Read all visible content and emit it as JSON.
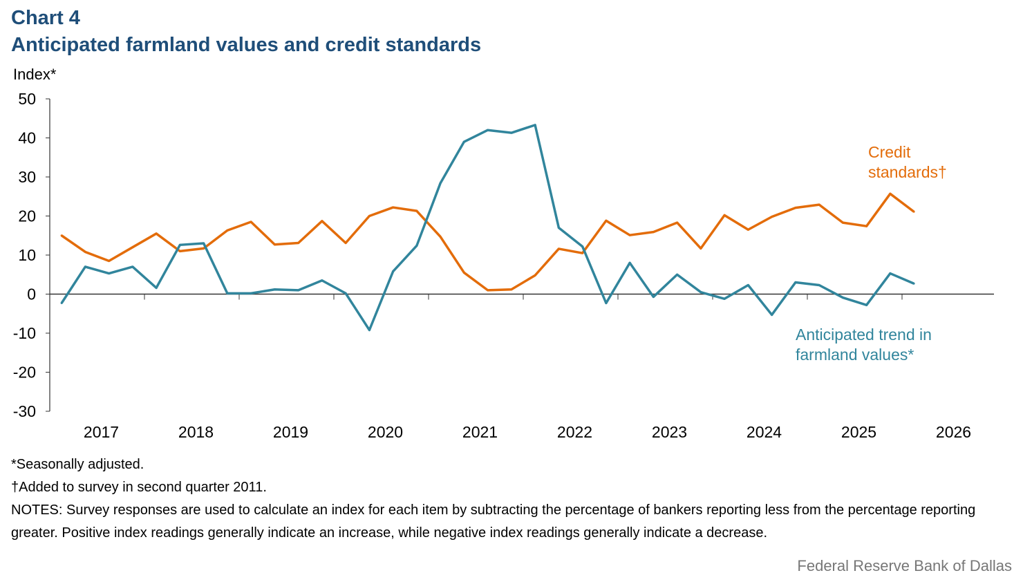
{
  "header": {
    "title": "Chart 4",
    "subtitle": "Anticipated  farmland  values  and  credit  standards"
  },
  "notes": [
    "*Seasonally adjusted.",
    "†Added to survey in second quarter 2011.",
    "NOTES: Survey responses are used to calculate an index for each item by subtracting the percentage of bankers reporting less from the percentage reporting greater. Positive index readings generally  indicate an increase, while  negative index readings generally  indicate a decrease."
  ],
  "source": "Federal Reserve Bank of Dallas",
  "chart_data": {
    "type": "line",
    "ylabel": "Index*",
    "ylim": [
      -30,
      50
    ],
    "yticks": [
      "50",
      "40",
      "30",
      "20",
      "10",
      "0",
      "-10",
      "-20",
      "-30"
    ],
    "xticks": [
      "2017",
      "2018",
      "2019",
      "2020",
      "2021",
      "2022",
      "2023",
      "2024",
      "2025",
      "2026"
    ],
    "series": [
      {
        "name": "Credit standards†",
        "label_lines": [
          "Credit",
          "standards†"
        ],
        "color": "#e36c0a",
        "values": [
          15,
          10.8,
          8.5,
          12,
          15.5,
          11,
          11.7,
          16.3,
          18.5,
          12.7,
          13.1,
          18.7,
          13.1,
          20,
          22.2,
          21.3,
          14.7,
          5.5,
          1,
          1.2,
          4.8,
          11.6,
          10.5,
          18.8,
          15.1,
          15.9,
          18.3,
          11.7,
          20.2,
          16.5,
          19.8,
          22.1,
          22.9,
          18.3,
          17.4,
          25.7,
          21.1
        ]
      },
      {
        "name": "Anticipated trend in farmland values*",
        "label_lines": [
          "Anticipated trend in",
          "farmland values*"
        ],
        "color": "#31859c",
        "values": [
          -2.3,
          7,
          5.3,
          7,
          1.6,
          12.6,
          13,
          0.2,
          0.2,
          1.2,
          1,
          3.5,
          0.2,
          -9.2,
          5.8,
          12.4,
          28.4,
          39,
          42,
          41.3,
          43.3,
          17,
          12.2,
          -2.3,
          8,
          -0.7,
          5,
          0.5,
          -1.2,
          2.3,
          -5.3,
          3,
          2.3,
          -0.9,
          -2.8,
          5.3,
          2.7
        ]
      }
    ]
  }
}
